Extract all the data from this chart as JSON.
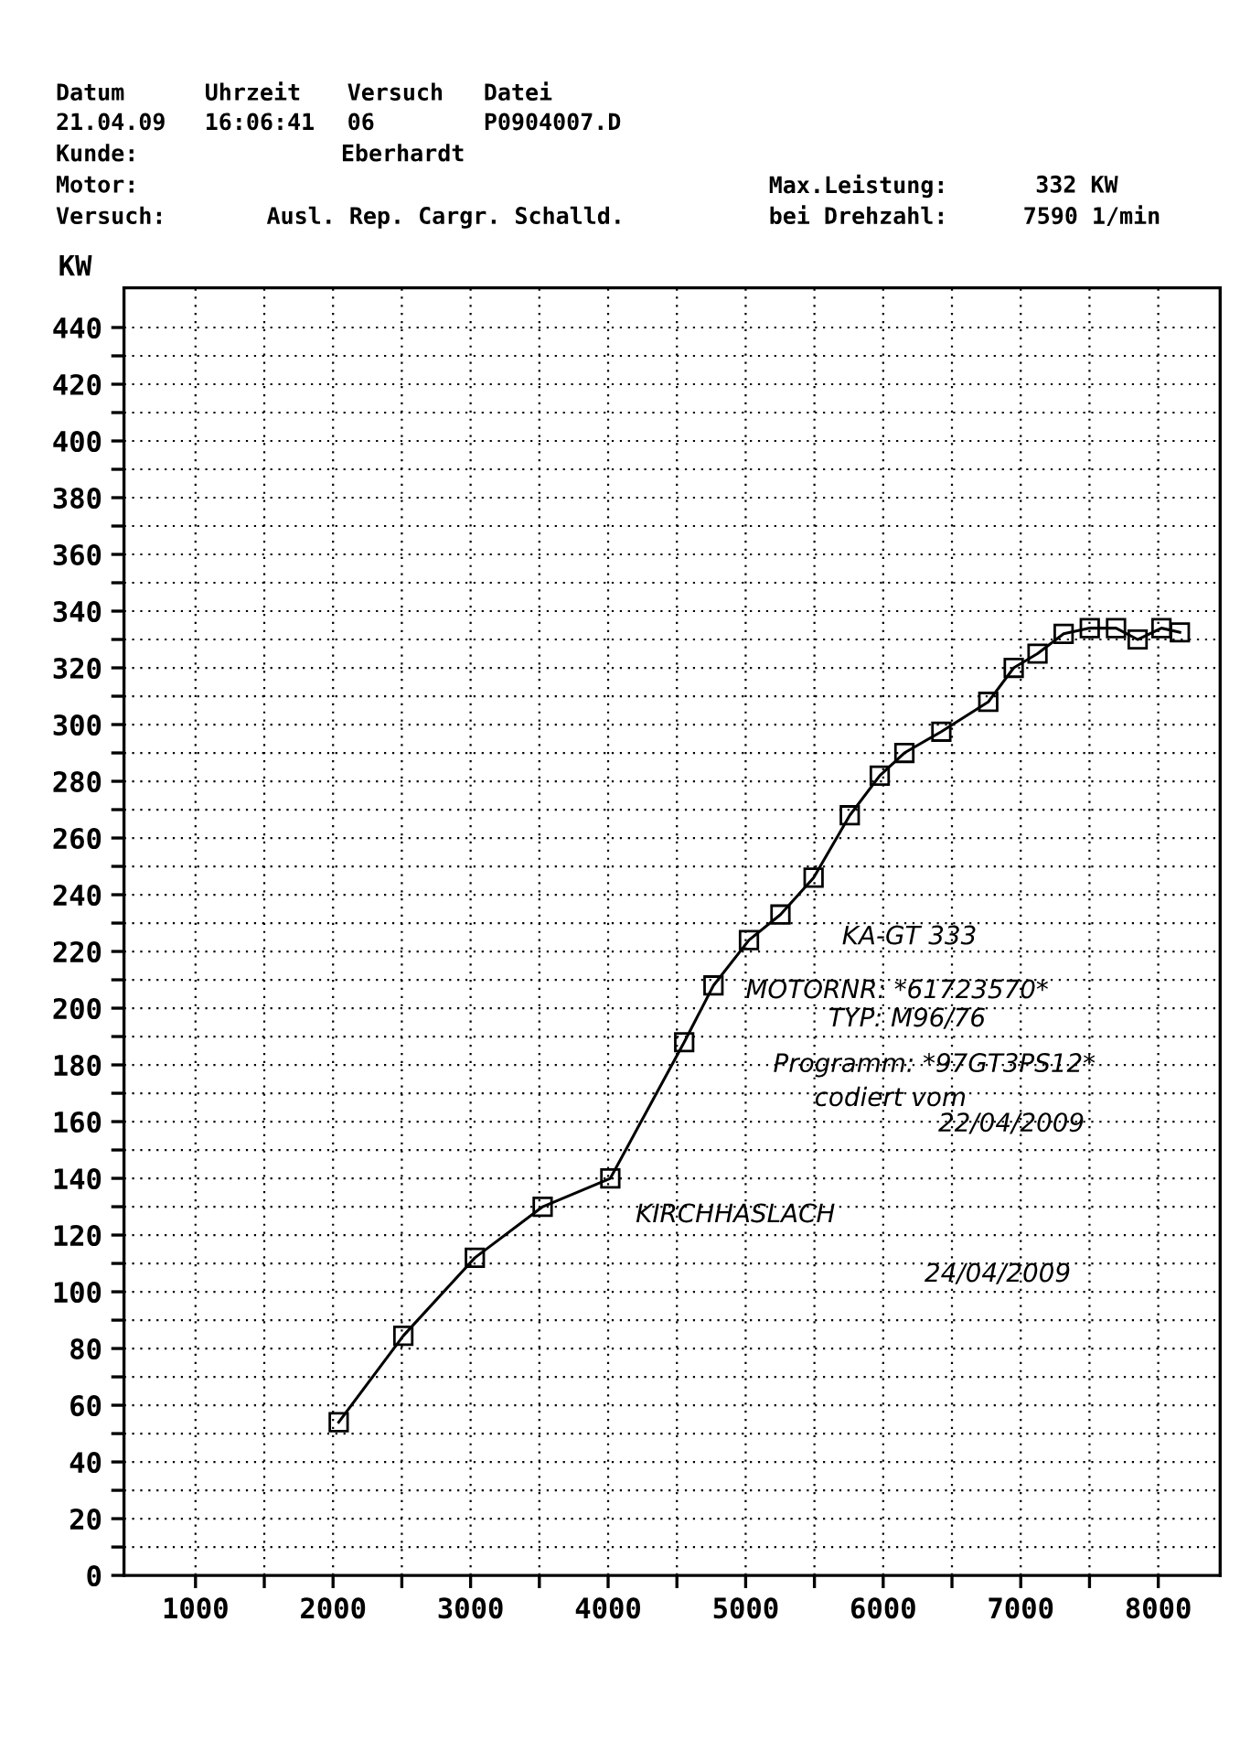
{
  "chart_data": {
    "type": "line",
    "ylabel": "KW",
    "x": [
      2041,
      2511,
      3031,
      3524,
      4016,
      4553,
      4766,
      5024,
      5253,
      5494,
      5757,
      5975,
      6154,
      6423,
      6764,
      6949,
      7122,
      7312,
      7502,
      7693,
      7850,
      8023,
      8157
    ],
    "series": [
      {
        "color": "#000000",
        "values": [
          54,
          84.5,
          112,
          130,
          140,
          188,
          208,
          224,
          233,
          246,
          268,
          282,
          290,
          297.5,
          308,
          320,
          325,
          332,
          334,
          334,
          330,
          334,
          332.5
        ]
      }
    ],
    "marker": "square",
    "line_style": "solid",
    "grid": true,
    "xlim": [
      480,
      8450
    ],
    "xticks": [
      1000,
      {
        "value": 1500,
        "label": null
      },
      2000,
      {
        "value": 2500,
        "label": null
      },
      3000,
      {
        "value": 3500,
        "label": null
      },
      4000,
      {
        "value": 4500,
        "label": null
      },
      5000,
      {
        "value": 5500,
        "label": null
      },
      6000,
      {
        "value": 6500,
        "label": null
      },
      7000,
      {
        "value": 7500,
        "label": null
      },
      8000
    ],
    "ylim": [
      0,
      454
    ],
    "yticks": [
      0,
      {
        "value": 10,
        "label": null
      },
      20,
      {
        "value": 30,
        "label": null
      },
      40,
      {
        "value": 50,
        "label": null
      },
      60,
      {
        "value": 70,
        "label": null
      },
      80,
      {
        "value": 90,
        "label": null
      },
      100,
      {
        "value": 110,
        "label": null
      },
      120,
      {
        "value": 130,
        "label": null
      },
      140,
      {
        "value": 150,
        "label": null
      },
      160,
      {
        "value": 170,
        "label": null
      },
      180,
      {
        "value": 190,
        "label": null
      },
      200,
      {
        "value": 210,
        "label": null
      },
      220,
      {
        "value": 230,
        "label": null
      },
      240,
      {
        "value": 250,
        "label": null
      },
      260,
      {
        "value": 270,
        "label": null
      },
      280,
      {
        "value": 290,
        "label": null
      },
      300,
      {
        "value": 310,
        "label": null
      },
      320,
      {
        "value": 330,
        "label": null
      },
      340,
      {
        "value": 350,
        "label": null
      },
      360,
      {
        "value": 370,
        "label": null
      },
      380,
      {
        "value": 390,
        "label": null
      },
      400,
      {
        "value": 410,
        "label": null
      },
      420,
      {
        "value": 430,
        "label": null
      },
      440
    ],
    "annotations": [
      "Datum",
      "Uhrzeit",
      "Versuch",
      "Datei",
      "21.04.09",
      "16:06:41",
      "06",
      "P0904007.D",
      "Kunde:",
      "Eberhardt",
      "Motor:",
      "Versuch:",
      "Ausl. Rep. Cargr. Schalld.",
      "Max.Leistung:",
      "332 KW",
      "bei Drehzahl:",
      "7590 1/min",
      "KA-GT 333",
      "MOTORNR: *61723570*",
      "TYP: M96/76",
      "Programm: *97GT3PS12*",
      "codiert vom",
      "22/04/2009",
      "KIRCHHASLACH",
      "24/04/2009"
    ]
  }
}
